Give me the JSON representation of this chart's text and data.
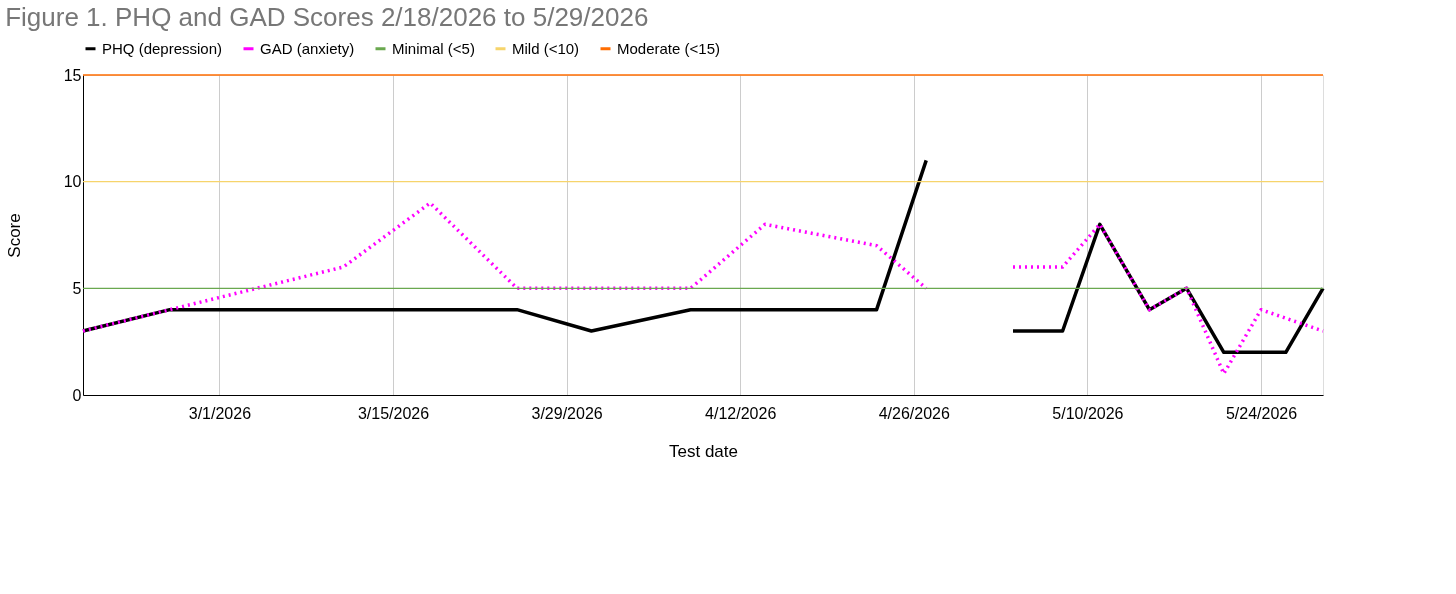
{
  "chart_data": {
    "type": "line",
    "title": "Figure 1. PHQ and GAD Scores 2/18/2026 to 5/29/2026",
    "xlabel": "Test date",
    "ylabel": "Score",
    "xlim": [
      "2026-02-18",
      "2026-05-29"
    ],
    "xticks": [
      {
        "value": "2026-03-01",
        "label": "3/1/2026"
      },
      {
        "value": "2026-03-15",
        "label": "3/15/2026"
      },
      {
        "value": "2026-03-29",
        "label": "3/29/2026"
      },
      {
        "value": "2026-04-12",
        "label": "4/12/2026"
      },
      {
        "value": "2026-04-26",
        "label": "4/26/2026"
      },
      {
        "value": "2026-05-10",
        "label": "5/10/2026"
      },
      {
        "value": "2026-05-24",
        "label": "5/24/2026"
      }
    ],
    "ylim": [
      0,
      15
    ],
    "yticks": [
      0,
      5,
      10,
      15
    ],
    "grid": "x",
    "legend": "top",
    "marker": "none",
    "series": [
      {
        "name": "PHQ (depression)",
        "color": "#000000",
        "line_style": "solid",
        "x": [
          "2026-02-18",
          "2026-02-25",
          "2026-03-25",
          "2026-03-31",
          "2026-04-08",
          "2026-04-23",
          "2026-04-27",
          "2026-05-01",
          "2026-05-04",
          "2026-05-08",
          "2026-05-11",
          "2026-05-15",
          "2026-05-18",
          "2026-05-21",
          "2026-05-26",
          "2026-05-29"
        ],
        "values": [
          3,
          4,
          4,
          3,
          4,
          4,
          11,
          null,
          3,
          3,
          8,
          4,
          5,
          2,
          2,
          5
        ]
      },
      {
        "name": "GAD (anxiety)",
        "color": "#ff00ff",
        "line_style": "dotted",
        "x": [
          "2026-02-18",
          "2026-02-25",
          "2026-03-11",
          "2026-03-18",
          "2026-03-25",
          "2026-04-08",
          "2026-04-14",
          "2026-04-23",
          "2026-04-27",
          "2026-05-01",
          "2026-05-04",
          "2026-05-08",
          "2026-05-11",
          "2026-05-15",
          "2026-05-18",
          "2026-05-21",
          "2026-05-24",
          "2026-05-29"
        ],
        "values": [
          3,
          4,
          6,
          9,
          5,
          5,
          8,
          7,
          5,
          null,
          6,
          6,
          8,
          4,
          5,
          1,
          4,
          3
        ]
      }
    ],
    "ref_lines": [
      {
        "axis": "y",
        "value": 5,
        "label": "Minimal (<5)",
        "color": "#6aa84f"
      },
      {
        "axis": "y",
        "value": 10,
        "label": "Mild (<10)",
        "color": "#f6d46b"
      },
      {
        "axis": "y",
        "value": 15,
        "label": "Moderate (<15)",
        "color": "#ff6d01"
      }
    ]
  }
}
